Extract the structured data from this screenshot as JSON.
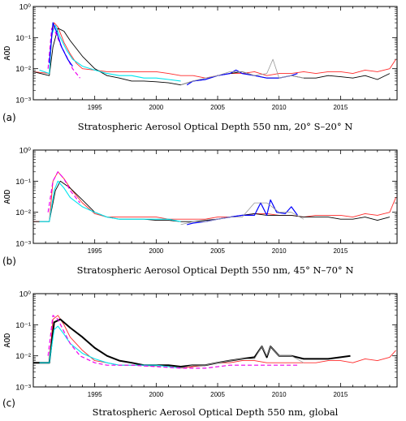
{
  "chart_data": [
    {
      "type": "line",
      "panel_letter": "(a)",
      "caption": "Stratospheric Aerosol Optical Depth 550 nm, 20° S–20° N",
      "ylabel": "AOD",
      "yscale": "log",
      "ylim": [
        0.001,
        1
      ],
      "xlim": [
        1990,
        2019.6
      ],
      "xticks": [
        1995,
        2000,
        2005,
        2010,
        2015
      ],
      "yticks": [
        "10⁻³",
        "10⁻²",
        "10⁻¹",
        "10⁰"
      ],
      "series": [
        {
          "color": "#ff2a2a",
          "style": "solid",
          "width": 0.9,
          "x": [
            1990.0,
            1991.3,
            1991.5,
            1991.7,
            1992.0,
            1992.5,
            1993.0,
            1993.5,
            1994.0,
            1995.0,
            1996.0,
            1997.0,
            1998.0,
            1999.0,
            2000.0,
            2001.0,
            2002.0,
            2003.0,
            2004.0,
            2005.0,
            2006.0,
            2007.0,
            2008.0,
            2009.0,
            2010.0,
            2011.0,
            2012.0,
            2013.0,
            2014.0,
            2015.0,
            2016.0,
            2017.0,
            2018.0,
            2019.0,
            2019.5
          ],
          "y": [
            0.008,
            0.007,
            0.1,
            0.3,
            0.22,
            0.07,
            0.03,
            0.015,
            0.01,
            0.009,
            0.008,
            0.008,
            0.008,
            0.008,
            0.008,
            0.007,
            0.006,
            0.006,
            0.005,
            0.006,
            0.007,
            0.007,
            0.008,
            0.006,
            0.007,
            0.007,
            0.008,
            0.007,
            0.008,
            0.008,
            0.007,
            0.009,
            0.008,
            0.01,
            0.02
          ]
        },
        {
          "color": "#000000",
          "style": "solid",
          "width": 0.9,
          "x": [
            1990.0,
            1991.3,
            1991.6,
            1992.0,
            1992.5,
            1993.0,
            1994.0,
            1995.0,
            1996.0,
            1997.0,
            1998.0,
            1999.0,
            2000.0,
            2001.0,
            2002.0,
            2003.0,
            2004.0,
            2005.0,
            2006.0,
            2007.0,
            2008.0,
            2009.0,
            2010.0,
            2011.0,
            2012.0,
            2013.0,
            2014.0,
            2015.0,
            2016.0,
            2017.0,
            2018.0,
            2019.0
          ],
          "y": [
            0.008,
            0.006,
            0.05,
            0.2,
            0.16,
            0.08,
            0.025,
            0.01,
            0.006,
            0.005,
            0.004,
            0.004,
            0.0038,
            0.0035,
            0.003,
            0.004,
            0.0045,
            0.006,
            0.007,
            0.008,
            0.006,
            0.005,
            0.005,
            0.006,
            0.005,
            0.005,
            0.006,
            0.0055,
            0.005,
            0.006,
            0.0045,
            0.007
          ]
        },
        {
          "color": "#00e5ee",
          "style": "solid",
          "width": 1.1,
          "x": [
            1990.5,
            1991.3,
            1991.5,
            1991.8,
            1992.2,
            1992.7,
            1993.2,
            1994.0,
            1995.0,
            1996.0,
            1997.0,
            1998.0,
            1999.0,
            2000.0,
            2001.0,
            2002.0
          ],
          "y": [
            0.009,
            0.007,
            0.12,
            0.25,
            0.1,
            0.04,
            0.02,
            0.012,
            0.009,
            0.007,
            0.006,
            0.006,
            0.005,
            0.005,
            0.0045,
            0.004
          ]
        },
        {
          "color": "#ee00ee",
          "style": "dashed",
          "width": 1.2,
          "x": [
            1991.2,
            1991.5,
            1991.8,
            1992.2,
            1992.7,
            1993.2,
            1993.8
          ],
          "y": [
            0.01,
            0.2,
            0.15,
            0.06,
            0.025,
            0.01,
            0.005
          ]
        },
        {
          "color": "#0000ff",
          "style": "solid",
          "width": 1.2,
          "x": [
            1991.3,
            1991.6,
            1991.9,
            1992.3,
            1992.8,
            1993.2
          ],
          "y": [
            0.015,
            0.3,
            0.15,
            0.05,
            0.02,
            0.012
          ]
        },
        {
          "color": "#0000ff",
          "style": "solid",
          "width": 1.2,
          "x": [
            2002.5,
            2003.0,
            2004.0,
            2005.0,
            2006.0,
            2006.5,
            2007.0,
            2008.0,
            2009.0,
            2010.0,
            2011.0,
            2011.5
          ],
          "y": [
            0.003,
            0.004,
            0.0045,
            0.006,
            0.007,
            0.009,
            0.007,
            0.006,
            0.005,
            0.005,
            0.006,
            0.007
          ]
        },
        {
          "color": "#999999",
          "style": "solid",
          "width": 0.8,
          "x": [
            2002.0,
            2003.0,
            2004.0,
            2005.0,
            2006.0,
            2007.0,
            2008.0,
            2009.0,
            2009.5,
            2010.0,
            2011.0,
            2012.0
          ],
          "y": [
            0.003,
            0.004,
            0.005,
            0.006,
            0.008,
            0.008,
            0.006,
            0.007,
            0.02,
            0.005,
            0.006,
            0.005
          ]
        }
      ]
    },
    {
      "type": "line",
      "panel_letter": "(b)",
      "caption": "Stratospheric Aerosol Optical Depth 550 nm, 45° N–70° N",
      "ylabel": "AOD",
      "yscale": "log",
      "ylim": [
        0.001,
        1
      ],
      "xlim": [
        1990,
        2019.6
      ],
      "xticks": [
        1995,
        2000,
        2005,
        2010,
        2015
      ],
      "yticks": [
        "10⁻³",
        "10⁻²",
        "10⁻¹",
        "10⁰"
      ],
      "series": [
        {
          "color": "#ff2a2a",
          "style": "solid",
          "width": 0.9,
          "x": [
            1990.0,
            1991.3,
            1991.6,
            1992.0,
            1992.5,
            1993.0,
            1994.0,
            1995.0,
            1996.0,
            1997.0,
            1998.0,
            1999.0,
            2000.0,
            2001.0,
            2002.0,
            2003.0,
            2004.0,
            2005.0,
            2006.0,
            2007.0,
            2008.0,
            2009.0,
            2010.0,
            2011.0,
            2012.0,
            2013.0,
            2014.0,
            2015.0,
            2016.0,
            2017.0,
            2018.0,
            2019.0,
            2019.5
          ],
          "y": [
            0.005,
            0.005,
            0.1,
            0.2,
            0.12,
            0.06,
            0.02,
            0.009,
            0.007,
            0.007,
            0.007,
            0.007,
            0.007,
            0.006,
            0.006,
            0.006,
            0.006,
            0.007,
            0.007,
            0.008,
            0.009,
            0.009,
            0.008,
            0.008,
            0.007,
            0.008,
            0.008,
            0.008,
            0.007,
            0.009,
            0.008,
            0.01,
            0.03
          ]
        },
        {
          "color": "#000000",
          "style": "solid",
          "width": 0.9,
          "x": [
            1990.0,
            1991.3,
            1991.8,
            1992.2,
            1993.0,
            1994.0,
            1995.0,
            1996.0,
            1997.0,
            1998.0,
            1999.0,
            2000.0,
            2001.0,
            2002.0,
            2003.0,
            2004.0,
            2005.0,
            2006.0,
            2007.0,
            2008.0,
            2009.0,
            2010.0,
            2011.0,
            2012.0,
            2013.0,
            2014.0,
            2015.0,
            2016.0,
            2017.0,
            2018.0,
            2019.0
          ],
          "y": [
            0.005,
            0.005,
            0.05,
            0.1,
            0.06,
            0.025,
            0.01,
            0.007,
            0.006,
            0.006,
            0.006,
            0.0055,
            0.0055,
            0.005,
            0.005,
            0.0055,
            0.006,
            0.007,
            0.008,
            0.009,
            0.008,
            0.008,
            0.008,
            0.007,
            0.007,
            0.007,
            0.006,
            0.006,
            0.007,
            0.0055,
            0.007
          ]
        },
        {
          "color": "#00e5ee",
          "style": "solid",
          "width": 1.1,
          "x": [
            1990.5,
            1991.3,
            1991.7,
            1992.0,
            1992.5,
            1993.0,
            1994.0,
            1995.0,
            1996.0,
            1997.0,
            1998.0,
            1999.0,
            2000.0,
            2001.0,
            2002.0
          ],
          "y": [
            0.005,
            0.005,
            0.05,
            0.1,
            0.06,
            0.03,
            0.015,
            0.01,
            0.007,
            0.006,
            0.006,
            0.006,
            0.006,
            0.006,
            0.005
          ]
        },
        {
          "color": "#ee00ee",
          "style": "dashed",
          "width": 1.2,
          "x": [
            1991.2,
            1991.6,
            1992.0,
            1992.5,
            1993.0,
            1993.8
          ],
          "y": [
            0.01,
            0.1,
            0.2,
            0.12,
            0.05,
            0.02
          ]
        },
        {
          "color": "#0000ff",
          "style": "solid",
          "width": 1.2,
          "x": [
            2002.5,
            2003.0,
            2004.0,
            2005.0,
            2006.0,
            2007.0,
            2008.0,
            2008.5,
            2009.0,
            2009.3,
            2009.8,
            2010.5,
            2011.0,
            2011.5
          ],
          "y": [
            0.004,
            0.0045,
            0.005,
            0.006,
            0.007,
            0.008,
            0.008,
            0.02,
            0.008,
            0.025,
            0.01,
            0.009,
            0.015,
            0.008
          ]
        },
        {
          "color": "#999999",
          "style": "solid",
          "width": 0.8,
          "x": [
            2002.0,
            2003.0,
            2004.0,
            2005.0,
            2006.0,
            2007.0,
            2008.0,
            2009.0,
            2010.0,
            2011.0,
            2012.0
          ],
          "y": [
            0.004,
            0.005,
            0.005,
            0.006,
            0.007,
            0.007,
            0.02,
            0.02,
            0.01,
            0.01,
            0.006
          ]
        }
      ]
    },
    {
      "type": "line",
      "panel_letter": "(c)",
      "caption": "Stratospheric Aerosol Optical Depth 550 nm, global",
      "ylabel": "AOD",
      "yscale": "log",
      "ylim": [
        0.001,
        1
      ],
      "xlim": [
        1990,
        2019.6
      ],
      "xticks": [
        1995,
        2000,
        2005,
        2010,
        2015
      ],
      "yticks": [
        "10⁻³",
        "10⁻²",
        "10⁻¹",
        "10⁰"
      ],
      "series": [
        {
          "color": "#ff2a2a",
          "style": "solid",
          "width": 0.9,
          "x": [
            1990.0,
            1991.3,
            1991.6,
            1992.0,
            1992.5,
            1993.0,
            1994.0,
            1995.0,
            1996.0,
            1997.0,
            1998.0,
            1999.0,
            2000.0,
            2001.0,
            2002.0,
            2003.0,
            2004.0,
            2005.0,
            2006.0,
            2007.0,
            2008.0,
            2009.0,
            2010.0,
            2011.0,
            2012.0,
            2013.0,
            2014.0,
            2015.0,
            2016.0,
            2017.0,
            2018.0,
            2019.0,
            2019.5
          ],
          "y": [
            0.006,
            0.006,
            0.15,
            0.2,
            0.1,
            0.04,
            0.015,
            0.007,
            0.006,
            0.005,
            0.005,
            0.005,
            0.005,
            0.0045,
            0.004,
            0.0045,
            0.005,
            0.006,
            0.006,
            0.007,
            0.007,
            0.006,
            0.006,
            0.006,
            0.006,
            0.006,
            0.007,
            0.007,
            0.006,
            0.008,
            0.007,
            0.009,
            0.015
          ]
        },
        {
          "color": "#000000",
          "style": "solid",
          "width": 2.0,
          "x": [
            1990.0,
            1991.3,
            1991.7,
            1992.2,
            1993.0,
            1994.0,
            1995.0,
            1996.0,
            1997.0,
            1998.0,
            1999.0,
            2000.0,
            2001.0,
            2002.0,
            2003.0,
            2004.0,
            2005.0,
            2006.0,
            2007.0,
            2008.0,
            2008.6,
            2009.0,
            2009.3,
            2010.0,
            2011.0,
            2012.0,
            2013.0,
            2014.0,
            2015.0,
            2015.8
          ],
          "y": [
            0.006,
            0.006,
            0.12,
            0.15,
            0.08,
            0.04,
            0.018,
            0.01,
            0.007,
            0.006,
            0.005,
            0.005,
            0.005,
            0.0045,
            0.005,
            0.005,
            0.006,
            0.007,
            0.008,
            0.009,
            0.02,
            0.009,
            0.02,
            0.01,
            0.01,
            0.008,
            0.008,
            0.008,
            0.009,
            0.01
          ]
        },
        {
          "color": "#00e5ee",
          "style": "solid",
          "width": 1.1,
          "x": [
            1990.5,
            1991.3,
            1991.7,
            1992.0,
            1992.5,
            1993.0,
            1994.0,
            1995.0,
            1996.0,
            1997.0,
            1998.0,
            1999.0,
            2000.0,
            2001.0,
            2002.0
          ],
          "y": [
            0.006,
            0.006,
            0.07,
            0.09,
            0.05,
            0.025,
            0.012,
            0.008,
            0.006,
            0.005,
            0.005,
            0.005,
            0.005,
            0.0045,
            0.004
          ]
        },
        {
          "color": "#ee00ee",
          "style": "dashed",
          "width": 1.2,
          "x": [
            1991.2,
            1991.6,
            1992.0,
            1992.5,
            1993.0,
            1993.8,
            1995.0,
            1996.0,
            1998.0,
            2000.0,
            2002.0,
            2004.0,
            2006.0,
            2008.0,
            2010.0,
            2011.5
          ],
          "y": [
            0.01,
            0.2,
            0.15,
            0.06,
            0.025,
            0.01,
            0.006,
            0.005,
            0.005,
            0.0045,
            0.004,
            0.004,
            0.005,
            0.005,
            0.005,
            0.005
          ]
        },
        {
          "color": "#999999",
          "style": "solid",
          "width": 0.8,
          "x": [
            2002.0,
            2003.0,
            2004.0,
            2005.0,
            2006.0,
            2007.0,
            2008.0,
            2008.6,
            2009.0,
            2009.3,
            2010.0,
            2011.0,
            2012.0
          ],
          "y": [
            0.004,
            0.005,
            0.005,
            0.006,
            0.007,
            0.008,
            0.008,
            0.02,
            0.01,
            0.02,
            0.01,
            0.01,
            0.006
          ]
        }
      ]
    }
  ]
}
